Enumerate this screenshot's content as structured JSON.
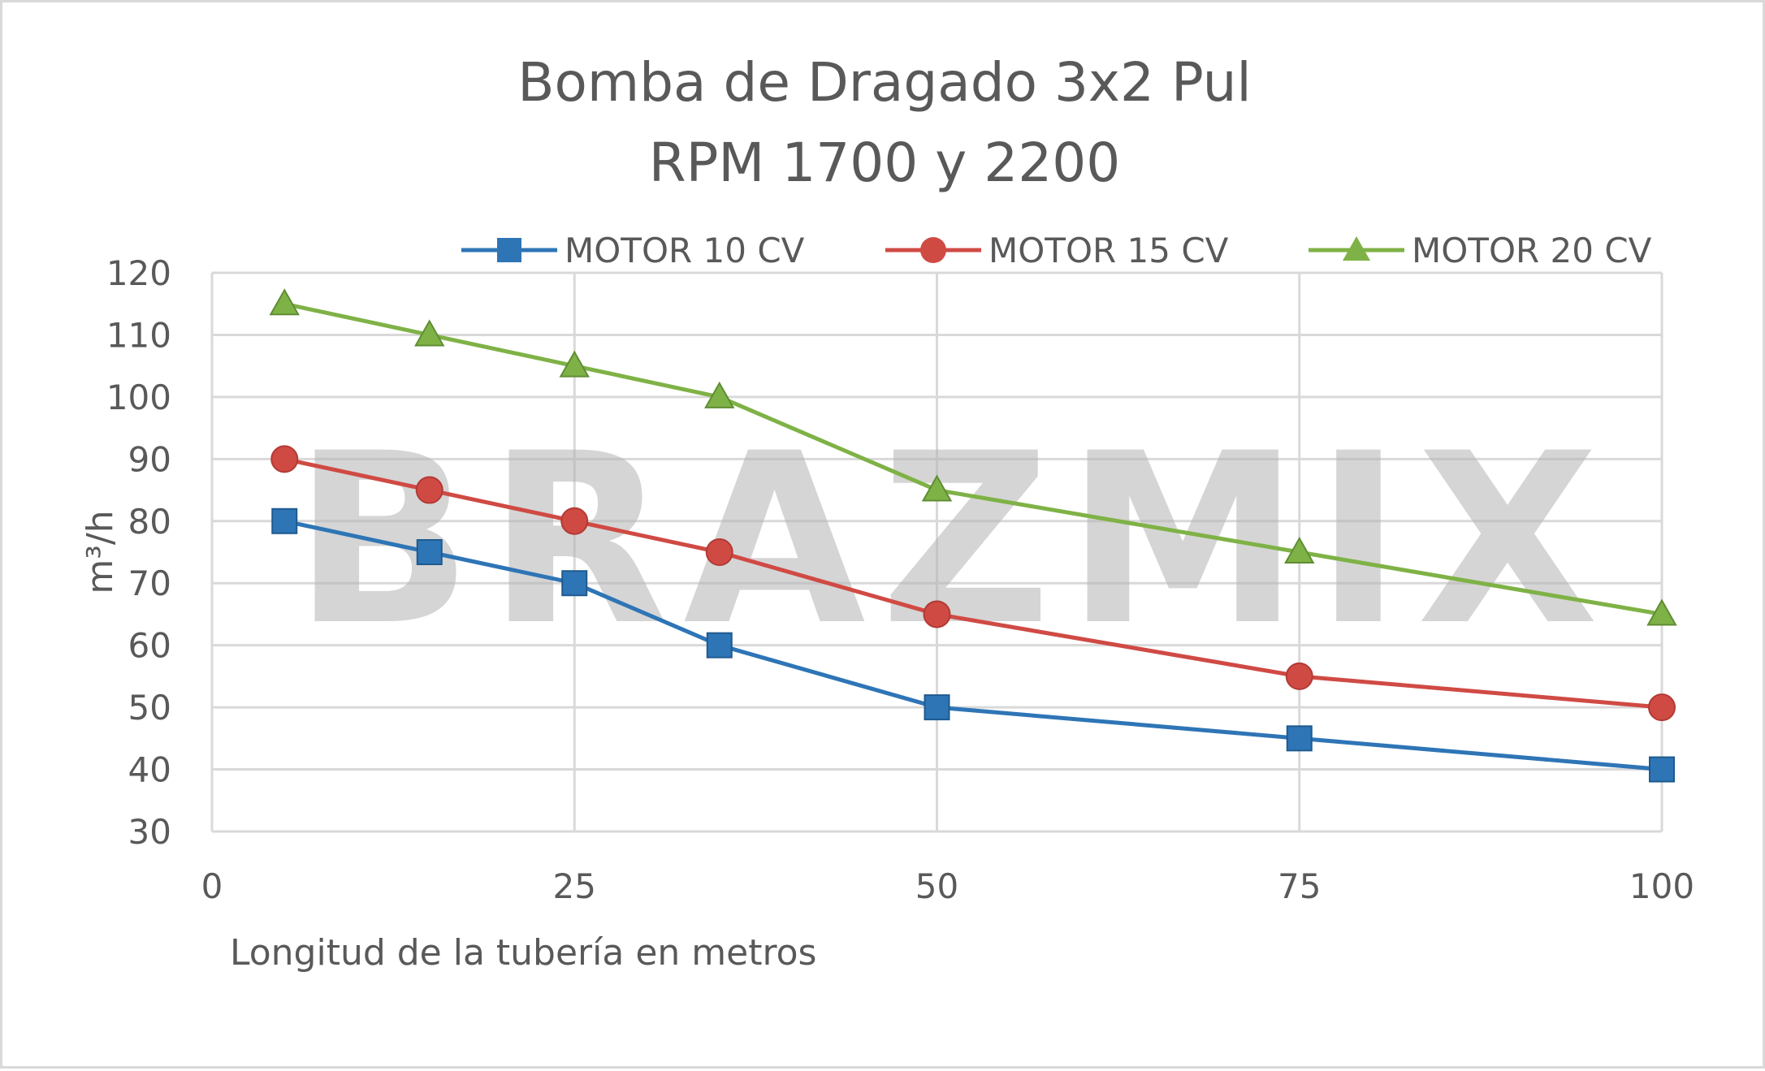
{
  "chart_data": {
    "type": "line",
    "title_lines": [
      "Bomba de Dragado 3x2 Pul",
      "RPM 1700 y 2200"
    ],
    "xlabel": "Longitud de la tubería en metros",
    "ylabel": "m³/h",
    "xlim": [
      0,
      100
    ],
    "ylim": [
      30,
      120
    ],
    "x_ticks": [
      0,
      25,
      50,
      75,
      100
    ],
    "y_ticks": [
      30,
      40,
      50,
      60,
      70,
      80,
      90,
      100,
      110,
      120
    ],
    "grid": true,
    "legend_position": "top",
    "watermark": "BRAZMIX",
    "x": [
      5,
      15,
      25,
      35,
      50,
      75,
      100
    ],
    "series": [
      {
        "name": "MOTOR 10 CV",
        "color": "#2e75b6",
        "marker": "square",
        "values": [
          80,
          75,
          70,
          60,
          50,
          45,
          40
        ]
      },
      {
        "name": "MOTOR 15 CV",
        "color": "#d04a44",
        "marker": "circle",
        "values": [
          90,
          85,
          80,
          75,
          65,
          55,
          50
        ]
      },
      {
        "name": "MOTOR 20 CV",
        "color": "#7fb246",
        "marker": "triangle",
        "values": [
          115,
          110,
          105,
          100,
          85,
          75,
          65
        ]
      }
    ]
  }
}
